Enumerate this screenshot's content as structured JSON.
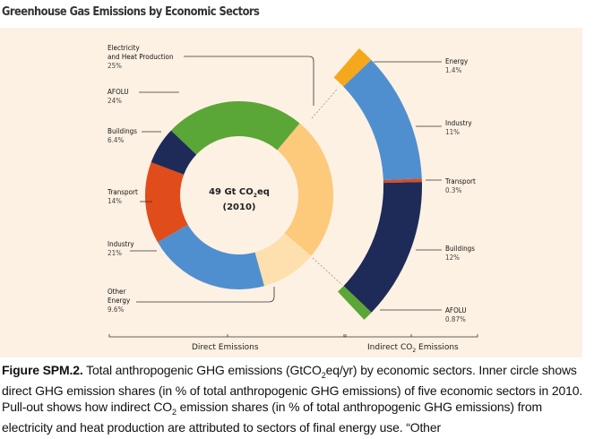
{
  "title": "Greenhouse Gas Emissions by Economic Sectors",
  "chart_data": [
    {
      "type": "pie",
      "variant": "donut",
      "center_label": {
        "line1_pre": "49 Gt CO",
        "line1_sub": "2",
        "line1_post": "eq",
        "line2": "(2010)"
      },
      "group_label": "Direct Emissions",
      "slices": [
        {
          "name": "Electricity and Heat Production",
          "name_lines": [
            "Electricity",
            "and Heat Production"
          ],
          "label": "25%",
          "value": 25,
          "color": "#fdc97a"
        },
        {
          "name": "Other Energy",
          "name_lines": [
            "Other",
            "Energy"
          ],
          "label": "9.6%",
          "value": 9.6,
          "color": "#fde0ad"
        },
        {
          "name": "Industry",
          "name_lines": [
            "Industry"
          ],
          "label": "21%",
          "value": 21,
          "color": "#4f8fd0"
        },
        {
          "name": "Transport",
          "name_lines": [
            "Transport"
          ],
          "label": "14%",
          "value": 14,
          "color": "#e04c1a"
        },
        {
          "name": "Buildings",
          "name_lines": [
            "Buildings"
          ],
          "label": "6.4%",
          "value": 6.4,
          "color": "#1e2b58"
        },
        {
          "name": "AFOLU",
          "name_lines": [
            "AFOLU"
          ],
          "label": "24%",
          "value": 24,
          "color": "#5aa636"
        }
      ]
    },
    {
      "type": "pie",
      "variant": "pull-out arc",
      "group_label_pre": "Indirect CO",
      "group_label_sub": "2",
      "group_label_post": " Emissions",
      "slices": [
        {
          "name": "Energy",
          "label": "1.4%",
          "value": 1.4,
          "color": "#f5a81c"
        },
        {
          "name": "Industry",
          "label": "11%",
          "value": 11,
          "color": "#4f8fd0"
        },
        {
          "name": "Transport",
          "label": "0.3%",
          "value": 0.3,
          "color": "#d4502a"
        },
        {
          "name": "Buildings",
          "label": "12%",
          "value": 12,
          "color": "#1e2b58"
        },
        {
          "name": "AFOLU",
          "label": "0.87%",
          "value": 0.87,
          "color": "#5aa636"
        }
      ]
    }
  ],
  "caption": {
    "figure_label": "Figure SPM.2.",
    "text_1": " Total anthropogenic GHG emissions (GtCO",
    "sub_1": "2",
    "text_2": "eq/yr) by economic sectors. Inner circle shows direct GHG emission shares (in % of total anthropogenic GHG emissions) of five economic sectors in 2010. Pull-out shows how indirect CO",
    "sub_2": "2",
    "text_3": " emission shares (in % of total anthropogenic GHG emissions) from electricity and heat production are attributed to sectors of final energy use. “Other"
  }
}
